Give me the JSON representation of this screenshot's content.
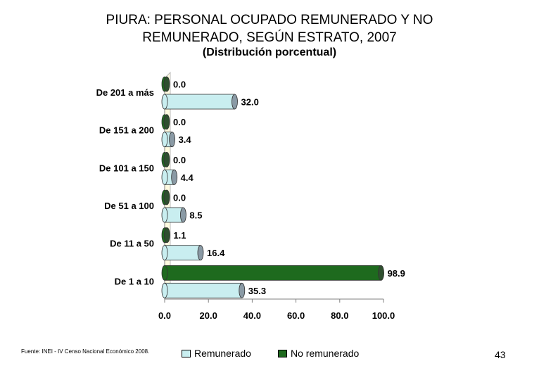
{
  "title_line1": "PIURA: PERSONAL OCUPADO REMUNERADO Y NO",
  "title_line2": "REMUNERADO, SEGÚN ESTRATO, 2007",
  "subtitle": "(Distribución porcentual)",
  "source": "Fuente: INEI - IV Censo Nacional Económico 2008.",
  "page_number": "43",
  "colors": {
    "remunerado": "#c9eef0",
    "no_remunerado": "#1e6a1e",
    "wall": "#fffbe0"
  },
  "chart_data": {
    "type": "bar",
    "orientation": "horizontal",
    "categories": [
      "De 201 a más",
      "De 151 a 200",
      "De 101 a 150",
      "De 51 a 100",
      "De 11 a 50",
      "De 1 a 10"
    ],
    "series": [
      {
        "name": "Remunerado",
        "values": [
          32.0,
          3.4,
          4.4,
          8.5,
          16.4,
          35.3
        ]
      },
      {
        "name": "No remunerado",
        "values": [
          0.0,
          0.0,
          0.0,
          0.0,
          1.1,
          98.9
        ]
      }
    ],
    "value_labels": {
      "remunerado": [
        "32.0",
        "3.4",
        "4.4",
        "8.5",
        "16.4",
        "35.3"
      ],
      "no_remunerado": [
        "0.0",
        "0.0",
        "0.0",
        "0.0",
        "1.1",
        "98.9"
      ]
    },
    "xlim": [
      0,
      100
    ],
    "xticks": [
      "0.0",
      "20.0",
      "40.0",
      "60.0",
      "80.0",
      "100.0"
    ],
    "legend_position": "bottom",
    "grid": false
  }
}
